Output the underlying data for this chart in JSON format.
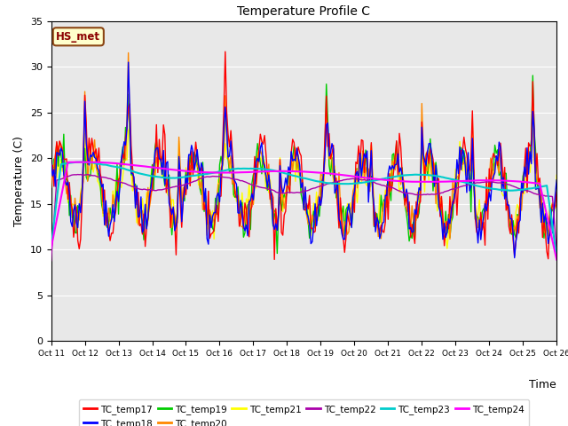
{
  "title": "Temperature Profile C",
  "xlabel": "Time",
  "ylabel": "Temperature (C)",
  "ylim": [
    0,
    35
  ],
  "annotation": "HS_met",
  "bg_color": "#e8e8e8",
  "series_colors": {
    "TC_temp17": "#ff0000",
    "TC_temp18": "#0000ff",
    "TC_temp19": "#00cc00",
    "TC_temp20": "#ff8800",
    "TC_temp21": "#ffff00",
    "TC_temp22": "#aa00aa",
    "TC_temp23": "#00cccc",
    "TC_temp24": "#ff00ff"
  },
  "yticks": [
    0,
    5,
    10,
    15,
    20,
    25,
    30,
    35
  ],
  "n_days": 16,
  "hours_per_day": 24,
  "legend_ncol": 6
}
